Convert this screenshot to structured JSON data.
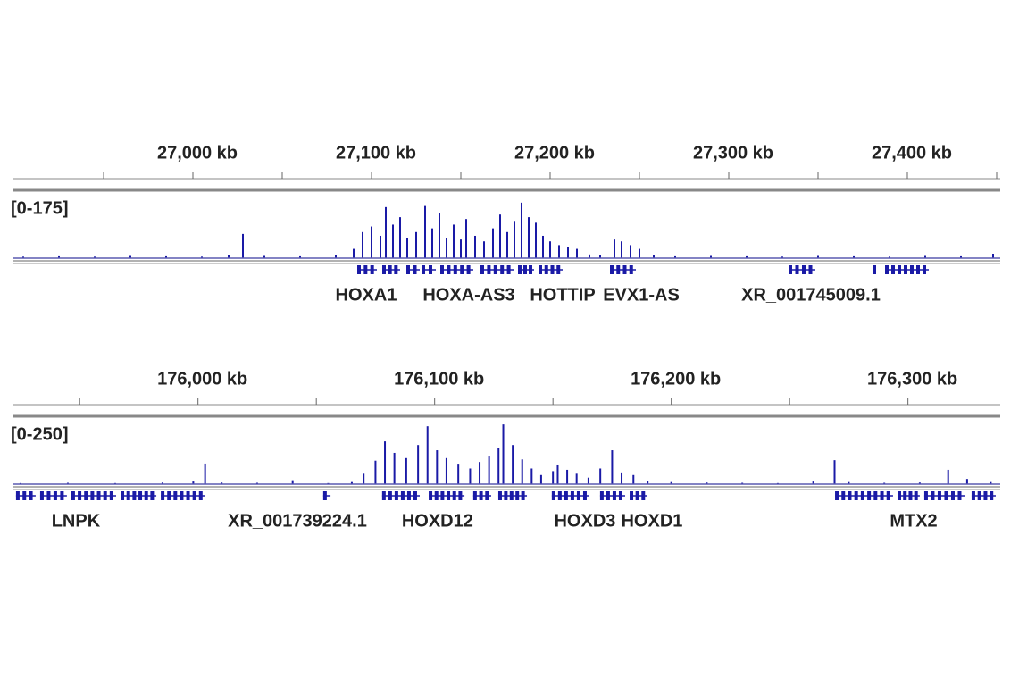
{
  "chart_data": [
    {
      "type": "track",
      "color": "#1a1aa6",
      "range_label": "[0-175]",
      "ylim": [
        0,
        175
      ],
      "xlim": [
        26899.5,
        27452
      ],
      "xticks": [
        {
          "value": 27000,
          "label": "27,000 kb"
        },
        {
          "value": 27100,
          "label": "27,100 kb"
        },
        {
          "value": 27200,
          "label": "27,200 kb"
        },
        {
          "value": 27300,
          "label": "27,300 kb"
        },
        {
          "value": 27400,
          "label": "27,400 kb"
        }
      ],
      "minor_xticks": [
        26950,
        27050,
        27150,
        27250,
        27350,
        27450
      ],
      "x": [
        26905,
        26925,
        26945,
        26965,
        26985,
        27005,
        27020,
        27028,
        27040,
        27060,
        27080,
        27090,
        27095,
        27100,
        27105,
        27108,
        27112,
        27116,
        27120,
        27125,
        27130,
        27134,
        27138,
        27142,
        27146,
        27150,
        27153,
        27158,
        27163,
        27168,
        27172,
        27176,
        27180,
        27184,
        27188,
        27192,
        27196,
        27200,
        27205,
        27210,
        27215,
        27222,
        27228,
        27236,
        27240,
        27245,
        27250,
        27258,
        27270,
        27290,
        27310,
        27330,
        27350,
        27370,
        27390,
        27410,
        27430,
        27448
      ],
      "values": [
        4,
        5,
        4,
        6,
        5,
        4,
        8,
        65,
        6,
        5,
        8,
        25,
        70,
        85,
        60,
        137,
        90,
        110,
        55,
        70,
        140,
        80,
        120,
        55,
        90,
        50,
        105,
        60,
        45,
        80,
        117,
        70,
        100,
        149,
        110,
        95,
        60,
        45,
        35,
        30,
        25,
        10,
        8,
        50,
        45,
        35,
        25,
        8,
        5,
        6,
        5,
        4,
        6,
        5,
        4,
        6,
        5,
        12
      ],
      "features": [
        [
          27092,
          27103
        ],
        [
          27106,
          27116
        ],
        [
          27119.5,
          27127
        ],
        [
          27128,
          27136
        ],
        [
          27138.5,
          27157
        ],
        [
          27161,
          27179.5
        ],
        [
          27182,
          27191
        ],
        [
          27193.5,
          27207
        ],
        [
          27233.5,
          27248
        ],
        [
          27333.5,
          27348.5
        ],
        [
          27380.5,
          27382.5
        ],
        [
          27387.5,
          27412
        ]
      ],
      "genes": [
        {
          "name": "HOXA1",
          "x": 27097
        },
        {
          "name": "HOXA-AS3",
          "x": 27154.5
        },
        {
          "name": "HOTTIP",
          "x": 27207
        },
        {
          "name": "EVX1-AS",
          "x": 27251
        },
        {
          "name": "XR_001745009.1",
          "x": 27346
        }
      ]
    },
    {
      "type": "track",
      "color": "#1a1aa6",
      "range_label": "[0-250]",
      "ylim": [
        0,
        250
      ],
      "xlim": [
        175922,
        176339
      ],
      "xticks": [
        {
          "value": 176000,
          "label": "176,000 kb"
        },
        {
          "value": 176100,
          "label": "176,100 kb"
        },
        {
          "value": 176200,
          "label": "176,200 kb"
        },
        {
          "value": 176300,
          "label": "176,300 kb"
        }
      ],
      "minor_xticks": [
        175950,
        176050,
        176150,
        176250
      ],
      "x": [
        175925,
        175945,
        175965,
        175985,
        175998,
        176003,
        176010,
        176025,
        176040,
        176055,
        176065,
        176070,
        176075,
        176079,
        176083,
        176088,
        176093,
        176097,
        176101,
        176105,
        176110,
        176115,
        176119,
        176123,
        176127,
        176129,
        176133,
        176137,
        176141,
        176145,
        176150,
        176152,
        176156,
        176160,
        176165,
        176170,
        176175,
        176179,
        176184,
        176190,
        176200,
        176215,
        176230,
        176245,
        176260,
        176269,
        176275,
        176290,
        176305,
        176317,
        176325,
        176335
      ],
      "values": [
        4,
        5,
        4,
        6,
        10,
        79,
        6,
        5,
        15,
        4,
        8,
        40,
        90,
        164,
        120,
        100,
        150,
        222,
        130,
        100,
        75,
        60,
        85,
        106,
        140,
        229,
        150,
        95,
        60,
        35,
        50,
        72,
        55,
        40,
        25,
        60,
        130,
        45,
        35,
        12,
        8,
        6,
        5,
        4,
        10,
        92,
        8,
        5,
        6,
        55,
        20,
        8
      ],
      "features": [
        [
          175923.1,
          175931.4
        ],
        [
          175933.3,
          175944.6
        ],
        [
          175946.5,
          175965.4
        ],
        [
          175967.3,
          175982.4
        ],
        [
          175984.3,
          176003.1
        ],
        [
          176052.9,
          176056
        ],
        [
          176077.8,
          176093.7
        ],
        [
          176097.5,
          176112.6
        ],
        [
          176116.3,
          176123.9
        ],
        [
          176126.9,
          176139
        ],
        [
          176149.5,
          176165.4
        ],
        [
          176169.9,
          176180.5
        ],
        [
          176182.4,
          176189.9
        ],
        [
          176269.2,
          176293.7
        ],
        [
          176295.6,
          176305
        ],
        [
          176306.9,
          176323.9
        ],
        [
          176326.9,
          176337.1
        ]
      ],
      "genes": [
        {
          "name": "LNPK",
          "x": 175948.4
        },
        {
          "name": "XR_001739224.1",
          "x": 176042
        },
        {
          "name": "HOXD12",
          "x": 176101.2
        },
        {
          "name": "HOXD3",
          "x": 176163.5
        },
        {
          "name": "HOXD1",
          "x": 176191.8
        },
        {
          "name": "MTX2",
          "x": 176302.4
        }
      ]
    }
  ]
}
